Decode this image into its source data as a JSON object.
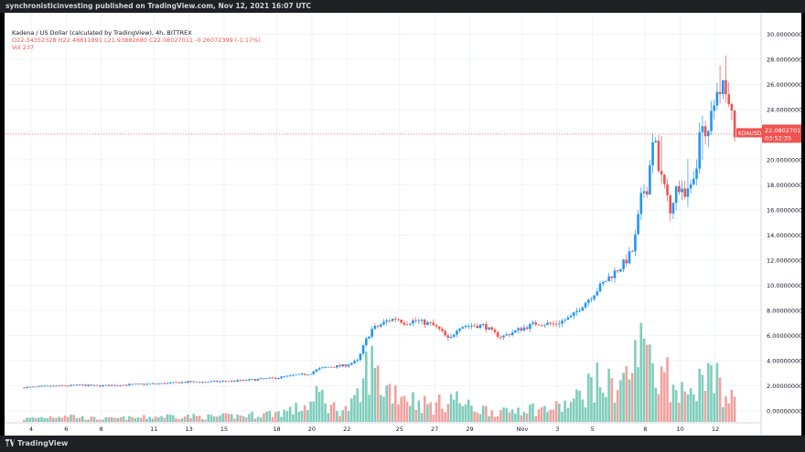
{
  "header": {
    "published_by": "synchronisticinvesting published on TradingView.com, Nov 12, 2021 16:07 UTC"
  },
  "legend": {
    "symbol_line": "Kadena / US Dollar (calculated by TradingView), 4h, BITTREX",
    "ohlc_line": "O22.34352328 H22.48811891 L21.93882680 C22.08027011 -0.26072399 (-1.17%)",
    "volume_line": "Vol 237"
  },
  "price_tag": {
    "symbol": "KDAUSD",
    "value": "22.08027011",
    "countdown": "03:52:35",
    "price": 22.08,
    "color": "#ef5350"
  },
  "footer": {
    "brand": "TradingView"
  },
  "colors": {
    "up": "#2196f3",
    "down": "#ef5350",
    "vol_up": "#7fcdbb",
    "vol_down": "#f2a19e"
  },
  "chart_data": {
    "type": "candlestick",
    "interval": "4h",
    "y_axis": {
      "min": 0,
      "max": 30,
      "ticks": [
        0,
        2,
        4,
        6,
        8,
        10,
        12,
        14,
        16,
        18,
        20,
        22,
        24,
        26,
        28,
        30
      ],
      "tick_labels": [
        "0.00000000",
        "2.00000000",
        "4.00000000",
        "6.00000000",
        "8.00000000",
        "10.00000000",
        "12.00000000",
        "14.00000000",
        "16.00000000",
        "18.00000000",
        "20.00000000",
        "22.00000000",
        "24.00000000",
        "26.00000000",
        "28.00000000",
        "30.00000000"
      ],
      "side": "right"
    },
    "x_axis": {
      "tick_labels": [
        "4",
        "6",
        "8",
        "11",
        "13",
        "15",
        "18",
        "20",
        "22",
        "25",
        "27",
        "29",
        "Nov",
        "3",
        "5",
        "8",
        "10",
        "12"
      ],
      "tick_days": [
        4,
        6,
        8,
        11,
        13,
        15,
        18,
        20,
        22,
        25,
        27,
        29,
        32,
        34,
        36,
        39,
        41,
        43
      ],
      "first_day": 4,
      "last_day": 44.2
    },
    "price_path": [
      [
        3.6,
        1.85
      ],
      [
        5,
        1.95
      ],
      [
        6,
        2.0
      ],
      [
        7,
        2.05
      ],
      [
        8,
        2.0
      ],
      [
        9,
        2.05
      ],
      [
        10,
        2.1
      ],
      [
        11,
        2.15
      ],
      [
        12,
        2.2
      ],
      [
        13,
        2.3
      ],
      [
        14,
        2.3
      ],
      [
        15,
        2.35
      ],
      [
        16,
        2.4
      ],
      [
        17,
        2.5
      ],
      [
        18,
        2.6
      ],
      [
        19,
        2.8
      ],
      [
        20,
        2.95
      ],
      [
        20.5,
        3.3
      ],
      [
        21,
        3.5
      ],
      [
        22,
        3.6
      ],
      [
        22.8,
        4.0
      ],
      [
        23.2,
        5.5
      ],
      [
        23.6,
        6.5
      ],
      [
        24,
        6.8
      ],
      [
        24.5,
        7.2
      ],
      [
        25,
        7.4
      ],
      [
        25.5,
        7.0
      ],
      [
        26,
        7.2
      ],
      [
        27,
        6.9
      ],
      [
        27.5,
        6.4
      ],
      [
        28,
        5.6
      ],
      [
        28.5,
        6.7
      ],
      [
        29,
        6.8
      ],
      [
        30,
        6.8
      ],
      [
        30.5,
        6.2
      ],
      [
        31,
        5.9
      ],
      [
        32,
        6.5
      ],
      [
        33,
        7.0
      ],
      [
        34,
        6.9
      ],
      [
        35,
        7.5
      ],
      [
        35.5,
        8.3
      ],
      [
        36,
        9.0
      ],
      [
        37,
        10.5
      ],
      [
        38,
        11.8
      ],
      [
        38.5,
        12.9
      ],
      [
        39,
        17.5
      ],
      [
        39.3,
        17.8
      ],
      [
        39.5,
        21.0
      ],
      [
        39.8,
        21.0
      ],
      [
        40,
        19.0
      ],
      [
        40.3,
        17.8
      ],
      [
        40.6,
        16.2
      ],
      [
        41,
        17.8
      ],
      [
        41.5,
        17.5
      ],
      [
        42,
        18.5
      ],
      [
        42.3,
        22.5
      ],
      [
        42.6,
        22.4
      ],
      [
        43,
        23.5
      ],
      [
        43.5,
        26.0
      ],
      [
        43.8,
        25.6
      ],
      [
        44,
        24.5
      ],
      [
        44.2,
        22.1
      ]
    ],
    "volume_max": 8,
    "volume_path": [
      [
        3.6,
        0.3
      ],
      [
        5,
        0.5
      ],
      [
        6,
        0.7
      ],
      [
        7,
        0.4
      ],
      [
        8,
        0.3
      ],
      [
        10,
        0.4
      ],
      [
        12,
        0.6
      ],
      [
        14,
        0.5
      ],
      [
        16,
        0.6
      ],
      [
        18,
        0.9
      ],
      [
        19,
        1.2
      ],
      [
        20,
        1.8
      ],
      [
        20.5,
        2.8
      ],
      [
        21,
        1.5
      ],
      [
        22,
        1.2
      ],
      [
        22.8,
        2.5
      ],
      [
        23.2,
        6.0
      ],
      [
        23.6,
        5.0
      ],
      [
        24,
        3.5
      ],
      [
        25,
        3.0
      ],
      [
        26,
        2.0
      ],
      [
        27,
        1.5
      ],
      [
        28,
        2.5
      ],
      [
        29,
        1.4
      ],
      [
        30,
        1.2
      ],
      [
        31,
        0.9
      ],
      [
        32,
        1.5
      ],
      [
        33,
        1.2
      ],
      [
        34,
        1.4
      ],
      [
        35,
        2.0
      ],
      [
        35.5,
        3.0
      ],
      [
        36,
        4.0
      ],
      [
        37,
        3.5
      ],
      [
        38,
        4.5
      ],
      [
        39,
        8.0
      ],
      [
        39.5,
        6.5
      ],
      [
        40,
        5.0
      ],
      [
        41,
        3.5
      ],
      [
        42,
        4.0
      ],
      [
        43,
        4.5
      ],
      [
        43.5,
        3.0
      ],
      [
        44.2,
        1.5
      ]
    ]
  }
}
